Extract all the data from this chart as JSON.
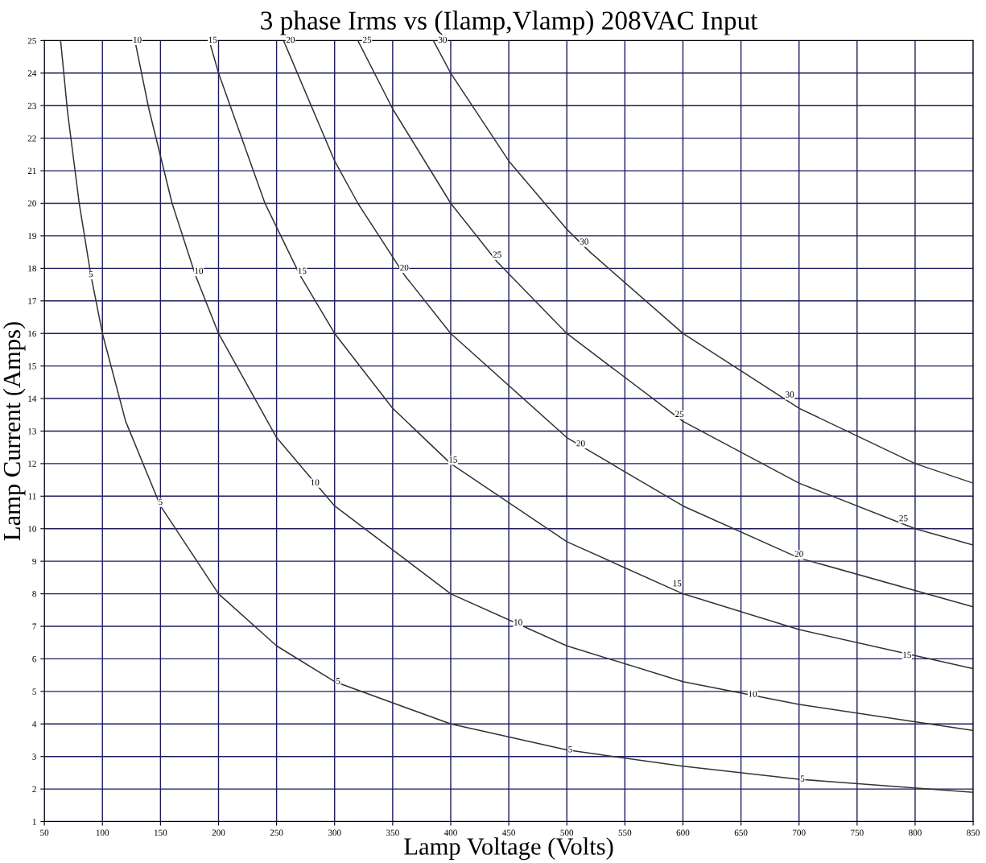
{
  "chart_data": {
    "type": "line",
    "title": "3 phase Irms vs (Ilamp,Vlamp) 208VAC Input",
    "xlabel": "Lamp Voltage (Volts)",
    "ylabel": "Lamp Current (Amps)",
    "xlim": [
      50,
      850
    ],
    "xticks": [
      50,
      100,
      150,
      200,
      250,
      300,
      350,
      400,
      450,
      500,
      550,
      600,
      650,
      700,
      750,
      800,
      850
    ],
    "ylim": [
      1,
      25
    ],
    "yticks": [
      1,
      2,
      3,
      4,
      5,
      6,
      7,
      8,
      9,
      10,
      11,
      12,
      13,
      14,
      15,
      16,
      17,
      18,
      19,
      20,
      21,
      22,
      23,
      24,
      25
    ],
    "grid": true,
    "marker": "none",
    "line_style": "solid",
    "series": [
      {
        "color": "#333333",
        "x": [
          64,
          70,
          80,
          90,
          100,
          120,
          150,
          200,
          250,
          300,
          400,
          500,
          600,
          700,
          850
        ],
        "values": [
          25,
          22.8,
          20,
          17.8,
          16,
          13.3,
          10.7,
          8,
          6.4,
          5.3,
          4,
          3.2,
          2.7,
          2.3,
          1.9
        ]
      },
      {
        "color": "#333333",
        "x": [
          128,
          140,
          160,
          180,
          200,
          250,
          300,
          400,
          500,
          600,
          700,
          850
        ],
        "values": [
          25,
          22.9,
          20,
          17.8,
          16,
          12.8,
          10.7,
          8,
          6.4,
          5.3,
          4.6,
          3.8
        ]
      },
      {
        "color": "#333333",
        "x": [
          192,
          200,
          240,
          270,
          300,
          350,
          400,
          500,
          600,
          700,
          850
        ],
        "values": [
          25,
          24,
          20,
          17.8,
          16,
          13.7,
          12,
          9.6,
          8,
          6.9,
          5.7
        ]
      },
      {
        "color": "#333333",
        "x": [
          256,
          300,
          320,
          360,
          400,
          500,
          600,
          700,
          850
        ],
        "values": [
          25,
          21.3,
          20,
          17.8,
          16,
          12.8,
          10.7,
          9.1,
          7.6
        ]
      },
      {
        "color": "#333333",
        "x": [
          320,
          350,
          400,
          440,
          500,
          600,
          700,
          800,
          850
        ],
        "values": [
          25,
          22.9,
          20,
          18.2,
          16,
          13.3,
          11.4,
          10,
          9.5
        ]
      },
      {
        "color": "#333333",
        "x": [
          385,
          400,
          450,
          500,
          520,
          600,
          700,
          800,
          850
        ],
        "values": [
          25,
          24,
          21.3,
          19.2,
          18.5,
          16,
          13.7,
          12,
          11.4
        ]
      }
    ],
    "annotations": [
      {
        "text": "5",
        "x": 90,
        "y": 17.8
      },
      {
        "text": "5",
        "x": 150,
        "y": 10.8
      },
      {
        "text": "5",
        "x": 303,
        "y": 5.3
      },
      {
        "text": "5",
        "x": 503,
        "y": 3.2
      },
      {
        "text": "5",
        "x": 703,
        "y": 2.3
      },
      {
        "text": "10",
        "x": 130,
        "y": 25
      },
      {
        "text": "10",
        "x": 183,
        "y": 17.9
      },
      {
        "text": "10",
        "x": 283,
        "y": 11.4
      },
      {
        "text": "10",
        "x": 458,
        "y": 7.1
      },
      {
        "text": "10",
        "x": 660,
        "y": 4.9
      },
      {
        "text": "15",
        "x": 195,
        "y": 25
      },
      {
        "text": "15",
        "x": 272,
        "y": 17.9
      },
      {
        "text": "15",
        "x": 402,
        "y": 12.1
      },
      {
        "text": "15",
        "x": 595,
        "y": 8.3
      },
      {
        "text": "15",
        "x": 793,
        "y": 6.1
      },
      {
        "text": "20",
        "x": 262,
        "y": 25
      },
      {
        "text": "20",
        "x": 360,
        "y": 18
      },
      {
        "text": "20",
        "x": 512,
        "y": 12.6
      },
      {
        "text": "20",
        "x": 700,
        "y": 9.2
      },
      {
        "text": "25",
        "x": 328,
        "y": 25
      },
      {
        "text": "25",
        "x": 440,
        "y": 18.4
      },
      {
        "text": "25",
        "x": 597,
        "y": 13.5
      },
      {
        "text": "25",
        "x": 790,
        "y": 10.3
      },
      {
        "text": "30",
        "x": 393,
        "y": 25
      },
      {
        "text": "30",
        "x": 515,
        "y": 18.8
      },
      {
        "text": "30",
        "x": 692,
        "y": 14.1
      }
    ]
  }
}
